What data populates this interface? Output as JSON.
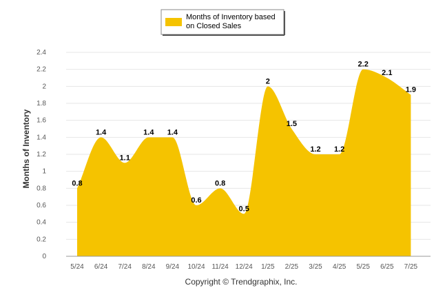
{
  "chart_data": {
    "type": "area",
    "categories": [
      "5/24",
      "6/24",
      "7/24",
      "8/24",
      "9/24",
      "10/24",
      "11/24",
      "12/24",
      "1/25",
      "2/25",
      "3/25",
      "4/25",
      "5/25",
      "6/25",
      "7/25"
    ],
    "series": [
      {
        "name": "Months of Inventory based on Closed Sales",
        "values": [
          0.8,
          1.4,
          1.1,
          1.4,
          1.4,
          0.6,
          0.8,
          0.5,
          2,
          1.5,
          1.2,
          1.2,
          2.2,
          2.1,
          1.9
        ],
        "labels": [
          "0.8",
          "1.4",
          "1.1",
          "1.4",
          "1.4",
          "0.6",
          "0.8",
          "0.5",
          "2",
          "1.5",
          "1.2",
          "1.2",
          "2.2",
          "2.1",
          "1.9"
        ],
        "color": "#F5C300"
      }
    ],
    "ylabel": "Months of Inventory",
    "xlabel": "",
    "ylim": [
      0,
      2.4
    ],
    "yticks": [
      "0",
      "0.2",
      "0.4",
      "0.6",
      "0.8",
      "1",
      "1.2",
      "1.4",
      "1.6",
      "1.8",
      "2",
      "2.2",
      "2.4"
    ],
    "grid": true,
    "legend_position": "top-center"
  },
  "legend": {
    "line1": "Months of Inventory based",
    "line2": "on Closed Sales"
  },
  "copyright": "Copyright © Trendgraphix, Inc."
}
